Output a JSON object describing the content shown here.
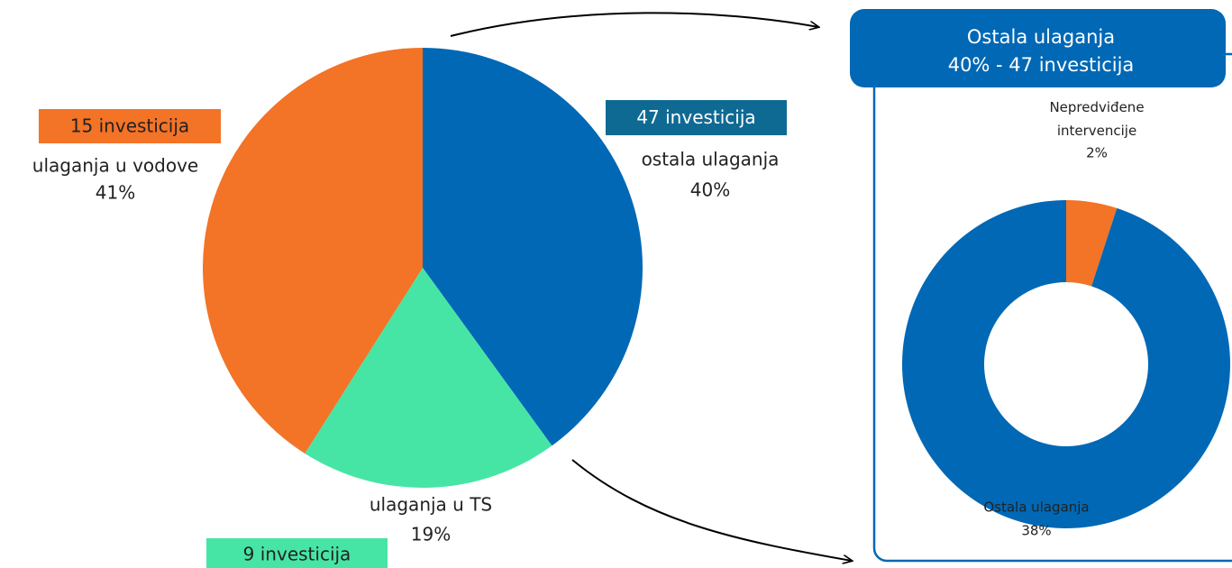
{
  "chart_data": [
    {
      "type": "pie",
      "categories": [
        "ostala ulaganja",
        "ulaganja u TS",
        "ulaganja u vodove"
      ],
      "values": [
        40,
        19,
        41
      ],
      "value_labels": [
        "40%",
        "19%",
        "41%"
      ],
      "colors": [
        "#0068b5",
        "#47e5a5",
        "#f37327"
      ],
      "annotations": [
        "47 investicija",
        "9 investicija",
        "15 investicija"
      ],
      "annotation_colors": [
        "#0f6a93",
        "#47e5a5",
        "#f37327"
      ]
    },
    {
      "type": "donut",
      "title": "Ostala ulaganja",
      "subtitle": "40% - 47 investicija",
      "categories": [
        "Nepredviđene\nintervencije",
        "Ostala ulaganja"
      ],
      "values": [
        2,
        38
      ],
      "value_labels": [
        "2%",
        "38%"
      ],
      "colors": [
        "#f37327",
        "#0068b5"
      ]
    }
  ]
}
